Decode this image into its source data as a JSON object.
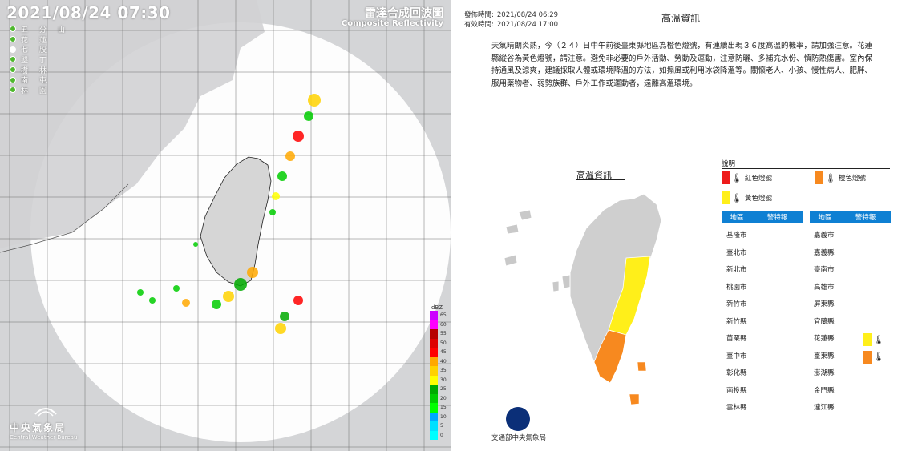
{
  "radar": {
    "timestamp": "2021/08/24  07:30",
    "title": "雷達合成回波圖",
    "subtitle": "Composite Reflectivity",
    "stations": [
      "五分山",
      "花蓮",
      "七股",
      "墾丁",
      "樹林",
      "南屯",
      "林園"
    ],
    "logo_name": "中央氣象局",
    "logo_en": "Central Weather Bureau",
    "legend_unit": "dBZ",
    "legend_levels": [
      65,
      60,
      55,
      50,
      45,
      40,
      35,
      30,
      25,
      20,
      15,
      10,
      5,
      0
    ],
    "legend_colors": [
      "#cc00ff",
      "#ff00ff",
      "#b70000",
      "#de0000",
      "#ff0000",
      "#ffa800",
      "#ffd200",
      "#ffff00",
      "#00aa00",
      "#00cc00",
      "#00ff00",
      "#00a8ff",
      "#00e0ff",
      "#00ffff"
    ]
  },
  "info": {
    "issued_label": "發佈時間:",
    "issued_value": "2021/08/24 06:29",
    "valid_label": "有效時間:",
    "valid_value": "2021/08/24 17:00",
    "title": "高溫資訊",
    "description": "天氣晴朗炎熱，今（２４）日中午前後臺東縣地區為橙色燈號，有連續出現３６度高溫的機率，請加強注意。花蓮縣縱谷為黃色燈號，請注意。避免非必要的戶外活動、勞動及運動，注意防曬、多補充水份、慎防熱傷害。室內保持通風及涼爽，建議採取人體或環境降溫的方法，如搧風或利用冰袋降溫等。關懷老人、小孩、慢性病人、肥胖、服用藥物者、弱勢族群、戶外工作或運動者，遠離高溫環境。",
    "map_title": "高溫資訊",
    "agency": "交通部中央氣象局",
    "legend_title": "說明",
    "legend": {
      "red": "紅色燈號",
      "orange": "橙色燈號",
      "yellow": "黃色燈號"
    },
    "colors": {
      "red": "#ee1b1b",
      "orange": "#f7891f",
      "yellow": "#ffef1a",
      "header": "#0f80d3"
    },
    "table_headers": {
      "region": "地區",
      "warning": "警特報"
    },
    "regions_left": [
      "基隆市",
      "臺北市",
      "新北市",
      "桃園市",
      "新竹市",
      "新竹縣",
      "苗栗縣",
      "臺中市",
      "彰化縣",
      "南投縣",
      "雲林縣"
    ],
    "regions_right": [
      "嘉義市",
      "嘉義縣",
      "臺南市",
      "高雄市",
      "屏東縣",
      "宜蘭縣",
      "花蓮縣",
      "臺東縣",
      "澎湖縣",
      "金門縣",
      "連江縣"
    ],
    "warnings_right": {
      "花蓮縣": "yellow",
      "臺東縣": "orange"
    }
  }
}
